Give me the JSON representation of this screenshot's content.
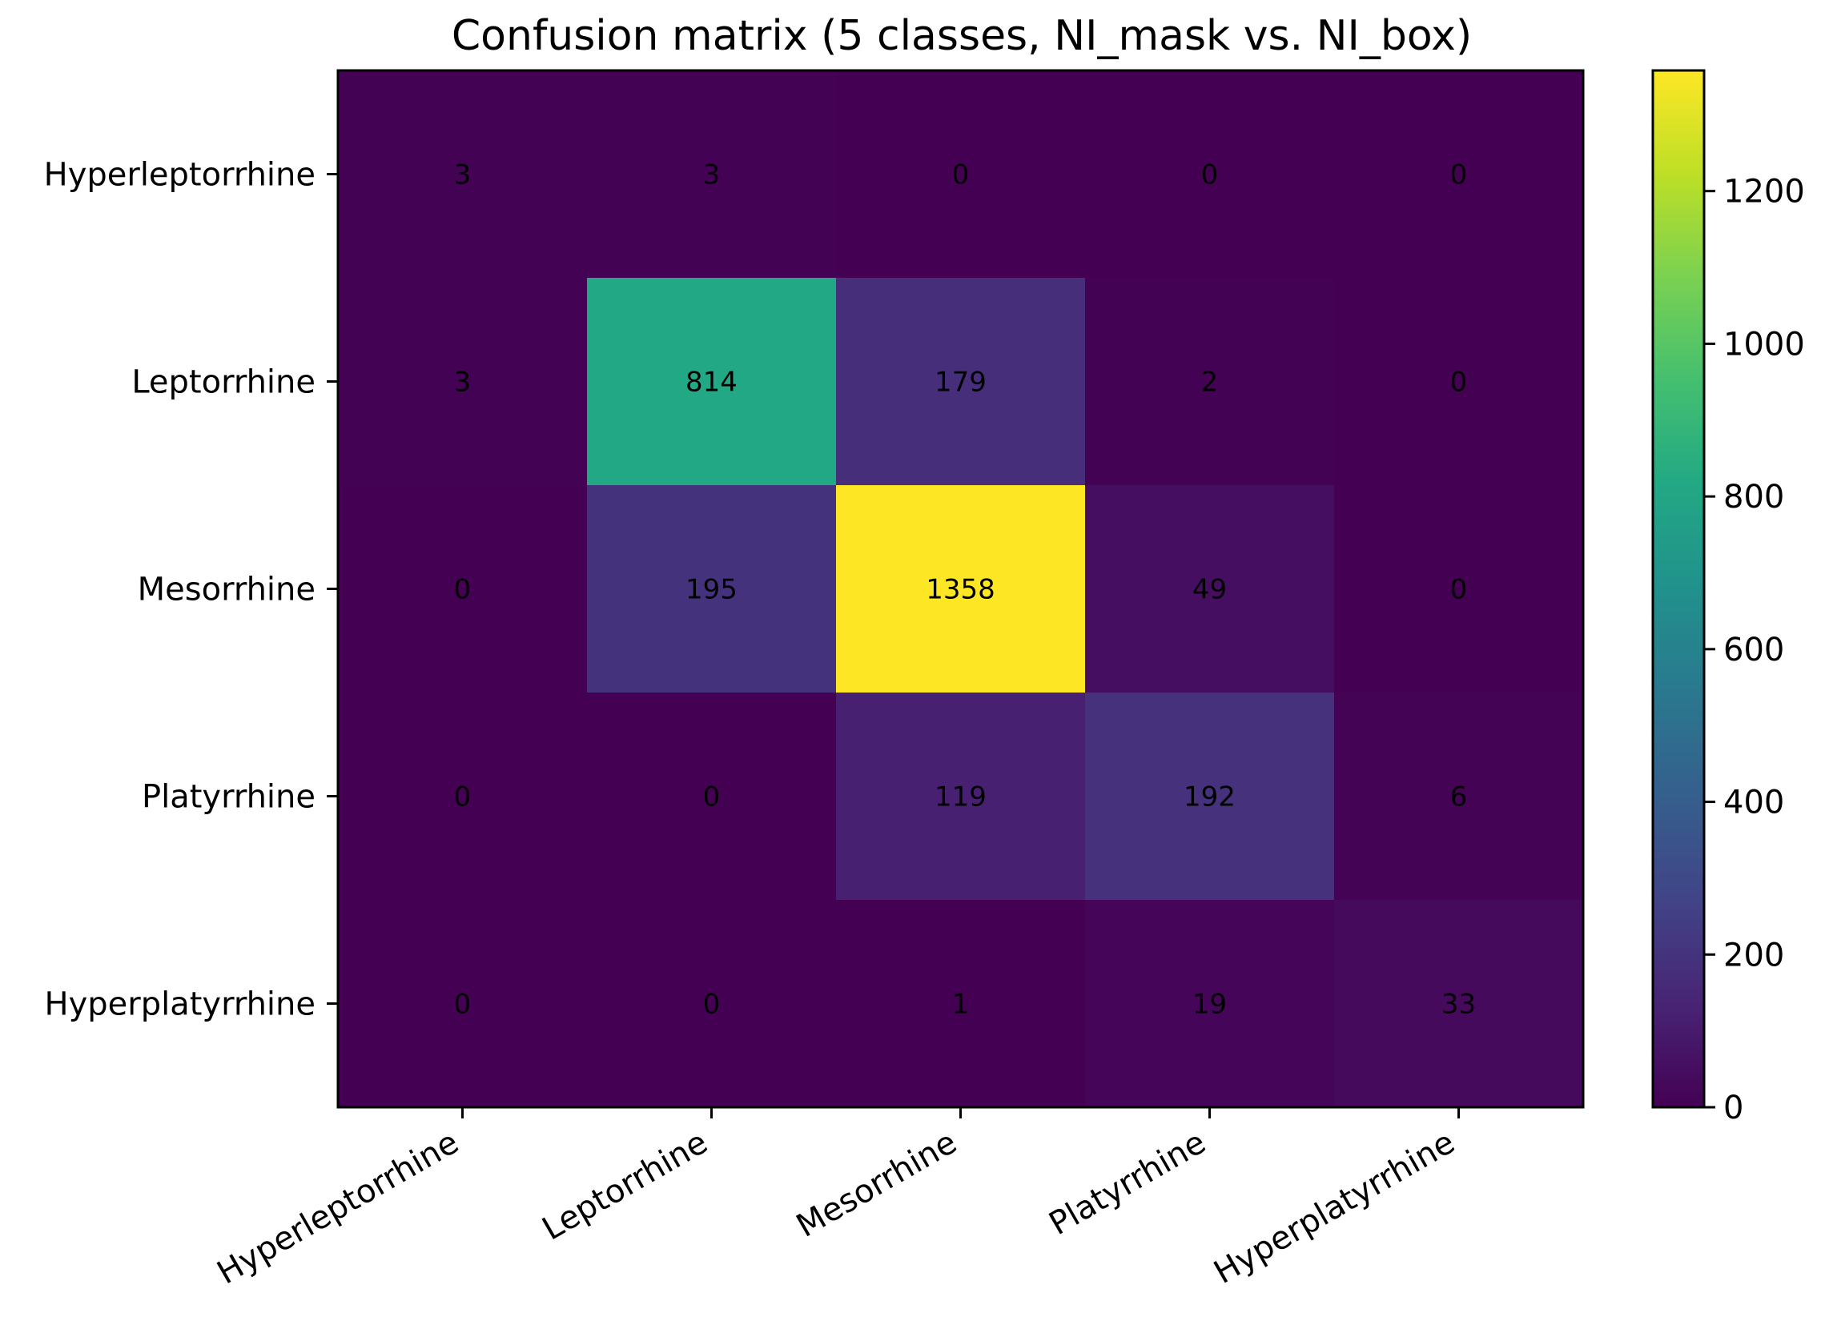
{
  "chart_data": {
    "type": "heatmap",
    "title": "Confusion matrix (5 classes, NI_mask vs. NI_box)",
    "xlabel": "",
    "ylabel": "",
    "row_labels": [
      "Hyperleptorrhine",
      "Leptorrhine",
      "Mesorrhine",
      "Platyrrhine",
      "Hyperplatyrrhine"
    ],
    "col_labels": [
      "Hyperleptorrhine",
      "Leptorrhine",
      "Mesorrhine",
      "Platyrrhine",
      "Hyperplatyrrhine"
    ],
    "values": [
      [
        3,
        3,
        0,
        0,
        0
      ],
      [
        3,
        814,
        179,
        2,
        0
      ],
      [
        0,
        195,
        1358,
        49,
        0
      ],
      [
        0,
        0,
        119,
        192,
        6
      ],
      [
        0,
        0,
        1,
        19,
        33
      ]
    ],
    "colormap": "viridis",
    "colorbar": {
      "range": [
        0,
        1358
      ],
      "ticks": [
        0,
        200,
        400,
        600,
        800,
        1000,
        1200
      ]
    },
    "grid": false,
    "legend": "colorbar-right"
  }
}
